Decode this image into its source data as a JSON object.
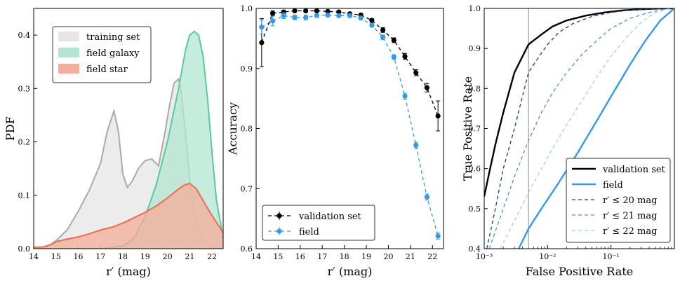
{
  "chart_data": [
    {
      "type": "area",
      "xlabel": "r′ (mag)",
      "ylabel": "PDF",
      "xlim": [
        14,
        22.5
      ],
      "ylim": [
        0,
        0.45
      ],
      "xticks": [
        14,
        15,
        16,
        17,
        18,
        19,
        20,
        21,
        22
      ],
      "yticks": [
        0.0,
        0.1,
        0.2,
        0.3,
        0.4
      ],
      "ytick_labels": [
        "0.0",
        "0.1",
        "0.2",
        "0.3",
        "0.4"
      ],
      "legend_position": "upper-left",
      "series": [
        {
          "name": "training set",
          "color": "#aaaaaa",
          "fill": "#e6e6e6",
          "x": [
            14.0,
            14.5,
            15.0,
            15.5,
            16.0,
            16.5,
            17.0,
            17.3,
            17.6,
            17.8,
            18.0,
            18.2,
            18.4,
            18.7,
            19.0,
            19.3,
            19.6,
            19.9,
            20.1,
            20.3,
            20.5,
            20.6,
            20.8,
            21.0,
            21.2,
            21.5,
            22.0,
            22.5
          ],
          "y": [
            0.0,
            0.0,
            0.015,
            0.035,
            0.07,
            0.11,
            0.16,
            0.22,
            0.258,
            0.22,
            0.14,
            0.115,
            0.125,
            0.15,
            0.165,
            0.168,
            0.155,
            0.22,
            0.27,
            0.31,
            0.318,
            0.3,
            0.22,
            0.13,
            0.065,
            0.02,
            0.002,
            0.0
          ]
        },
        {
          "name": "field galaxy",
          "color": "#55cc99",
          "fill": "#b3e6d1",
          "x": [
            14.0,
            14.5,
            15.0,
            16.0,
            17.0,
            18.0,
            18.5,
            19.0,
            19.5,
            20.0,
            20.5,
            20.8,
            21.0,
            21.2,
            21.4,
            21.6,
            21.8,
            22.0,
            22.2,
            22.5
          ],
          "y": [
            0.0,
            0.0,
            0.0,
            0.0,
            0.0,
            0.005,
            0.02,
            0.06,
            0.12,
            0.2,
            0.3,
            0.37,
            0.4,
            0.407,
            0.4,
            0.36,
            0.28,
            0.18,
            0.09,
            0.02
          ]
        },
        {
          "name": "field star",
          "color": "#f06a4d",
          "fill": "#f5ad99",
          "x": [
            14.0,
            14.4,
            14.8,
            15.0,
            15.5,
            16.0,
            16.5,
            17.0,
            17.5,
            18.0,
            18.5,
            19.0,
            19.5,
            20.0,
            20.5,
            20.8,
            21.0,
            21.3,
            21.6,
            22.0,
            22.5
          ],
          "y": [
            0.003,
            0.003,
            0.008,
            0.013,
            0.018,
            0.022,
            0.028,
            0.035,
            0.04,
            0.048,
            0.058,
            0.068,
            0.08,
            0.095,
            0.112,
            0.12,
            0.122,
            0.112,
            0.09,
            0.062,
            0.03
          ]
        }
      ]
    },
    {
      "type": "line",
      "xlabel": "r′ (mag)",
      "ylabel": "Accuracy",
      "xlim": [
        14,
        22.5
      ],
      "ylim": [
        0.6,
        1.0
      ],
      "xticks": [
        14,
        15,
        16,
        17,
        18,
        19,
        20,
        21,
        22
      ],
      "yticks": [
        0.6,
        0.7,
        0.8,
        0.9,
        1.0
      ],
      "ytick_labels": [
        "0.6",
        "0.7",
        "0.8",
        "0.9",
        "1.0"
      ],
      "legend_position": "lower-left",
      "series": [
        {
          "name": "validation set",
          "color": "#000000",
          "x": [
            14.25,
            14.75,
            15.25,
            15.75,
            16.25,
            16.75,
            17.25,
            17.75,
            18.25,
            18.75,
            19.25,
            19.75,
            20.25,
            20.75,
            21.25,
            21.75,
            22.25
          ],
          "y": [
            0.943,
            0.992,
            0.994,
            0.996,
            0.996,
            0.996,
            0.995,
            0.994,
            0.991,
            0.989,
            0.98,
            0.964,
            0.947,
            0.92,
            0.893,
            0.868,
            0.821
          ],
          "err": [
            0.04,
            0.004,
            0.003,
            0.002,
            0.002,
            0.002,
            0.002,
            0.002,
            0.002,
            0.002,
            0.003,
            0.004,
            0.004,
            0.005,
            0.005,
            0.007,
            0.025
          ]
        },
        {
          "name": "field",
          "color": "#3399ee",
          "x": [
            14.25,
            14.75,
            15.25,
            15.75,
            16.25,
            16.75,
            17.25,
            17.75,
            18.25,
            18.75,
            19.25,
            19.75,
            20.25,
            20.75,
            21.25,
            21.75,
            22.25
          ],
          "y": [
            0.969,
            0.979,
            0.988,
            0.985,
            0.985,
            0.988,
            0.989,
            0.988,
            0.988,
            0.984,
            0.972,
            0.952,
            0.919,
            0.854,
            0.772,
            0.686,
            0.621
          ],
          "err": [
            0.012,
            0.008,
            0.005,
            0.004,
            0.004,
            0.003,
            0.003,
            0.003,
            0.003,
            0.003,
            0.003,
            0.004,
            0.004,
            0.005,
            0.005,
            0.005,
            0.005
          ]
        }
      ]
    },
    {
      "type": "line",
      "xlabel": "False Positive Rate",
      "ylabel": "True Positive Rate",
      "xscale": "log",
      "xlim": [
        0.001,
        1.0
      ],
      "ylim": [
        0.4,
        1.0
      ],
      "xticks": [
        0.001,
        0.01,
        0.1
      ],
      "xtick_labels": [
        "10⁻³",
        "10⁻²",
        "10⁻¹"
      ],
      "yticks": [
        0.4,
        0.5,
        0.6,
        0.7,
        0.8,
        0.9,
        1.0
      ],
      "ytick_labels": [
        "0.4",
        "0.5",
        "0.6",
        "0.7",
        "0.8",
        "0.9",
        "1.0"
      ],
      "vline_x": 0.005,
      "legend_position": "lower-right",
      "series": [
        {
          "name": "validation set",
          "color": "#000000",
          "style": "solid",
          "x": [
            0.001,
            0.0012,
            0.0015,
            0.002,
            0.003,
            0.005,
            0.008,
            0.012,
            0.02,
            0.04,
            0.08,
            0.15,
            0.3,
            0.6,
            1.0
          ],
          "y": [
            0.53,
            0.59,
            0.66,
            0.74,
            0.84,
            0.91,
            0.935,
            0.955,
            0.97,
            0.982,
            0.99,
            0.995,
            0.998,
            1.0,
            1.0
          ]
        },
        {
          "name": "field",
          "color": "#3399ee",
          "style": "solid",
          "x": [
            0.0035,
            0.005,
            0.008,
            0.015,
            0.03,
            0.06,
            0.1,
            0.2,
            0.35,
            0.6,
            1.0
          ],
          "y": [
            0.4,
            0.45,
            0.5,
            0.565,
            0.64,
            0.72,
            0.78,
            0.86,
            0.92,
            0.97,
            1.0
          ]
        },
        {
          "name": "r′ ≤ 20 mag",
          "color": "#1a3d80",
          "style": "dashed",
          "x": [
            0.0011,
            0.0015,
            0.002,
            0.003,
            0.004,
            0.005,
            0.007,
            0.01,
            0.015,
            0.025,
            0.05,
            0.1,
            0.2,
            0.4,
            1.0
          ],
          "y": [
            0.4,
            0.5,
            0.6,
            0.7,
            0.78,
            0.84,
            0.875,
            0.91,
            0.94,
            0.962,
            0.98,
            0.99,
            0.996,
            0.999,
            1.0
          ]
        },
        {
          "name": "r′ ≤ 21 mag",
          "color": "#4a90d0",
          "style": "dashed",
          "x": [
            0.0012,
            0.002,
            0.003,
            0.005,
            0.008,
            0.012,
            0.02,
            0.035,
            0.06,
            0.1,
            0.2,
            0.4,
            0.7,
            1.0
          ],
          "y": [
            0.4,
            0.5,
            0.58,
            0.67,
            0.74,
            0.79,
            0.84,
            0.885,
            0.92,
            0.95,
            0.975,
            0.99,
            0.998,
            1.0
          ]
        },
        {
          "name": "r′ ≤ 22 mag",
          "color": "#a3cbea",
          "style": "dashed",
          "x": [
            0.0018,
            0.003,
            0.005,
            0.008,
            0.012,
            0.02,
            0.035,
            0.06,
            0.1,
            0.18,
            0.3,
            0.5,
            0.8,
            1.0
          ],
          "y": [
            0.4,
            0.47,
            0.54,
            0.6,
            0.65,
            0.71,
            0.77,
            0.83,
            0.88,
            0.93,
            0.965,
            0.99,
            0.999,
            1.0
          ]
        }
      ]
    }
  ]
}
